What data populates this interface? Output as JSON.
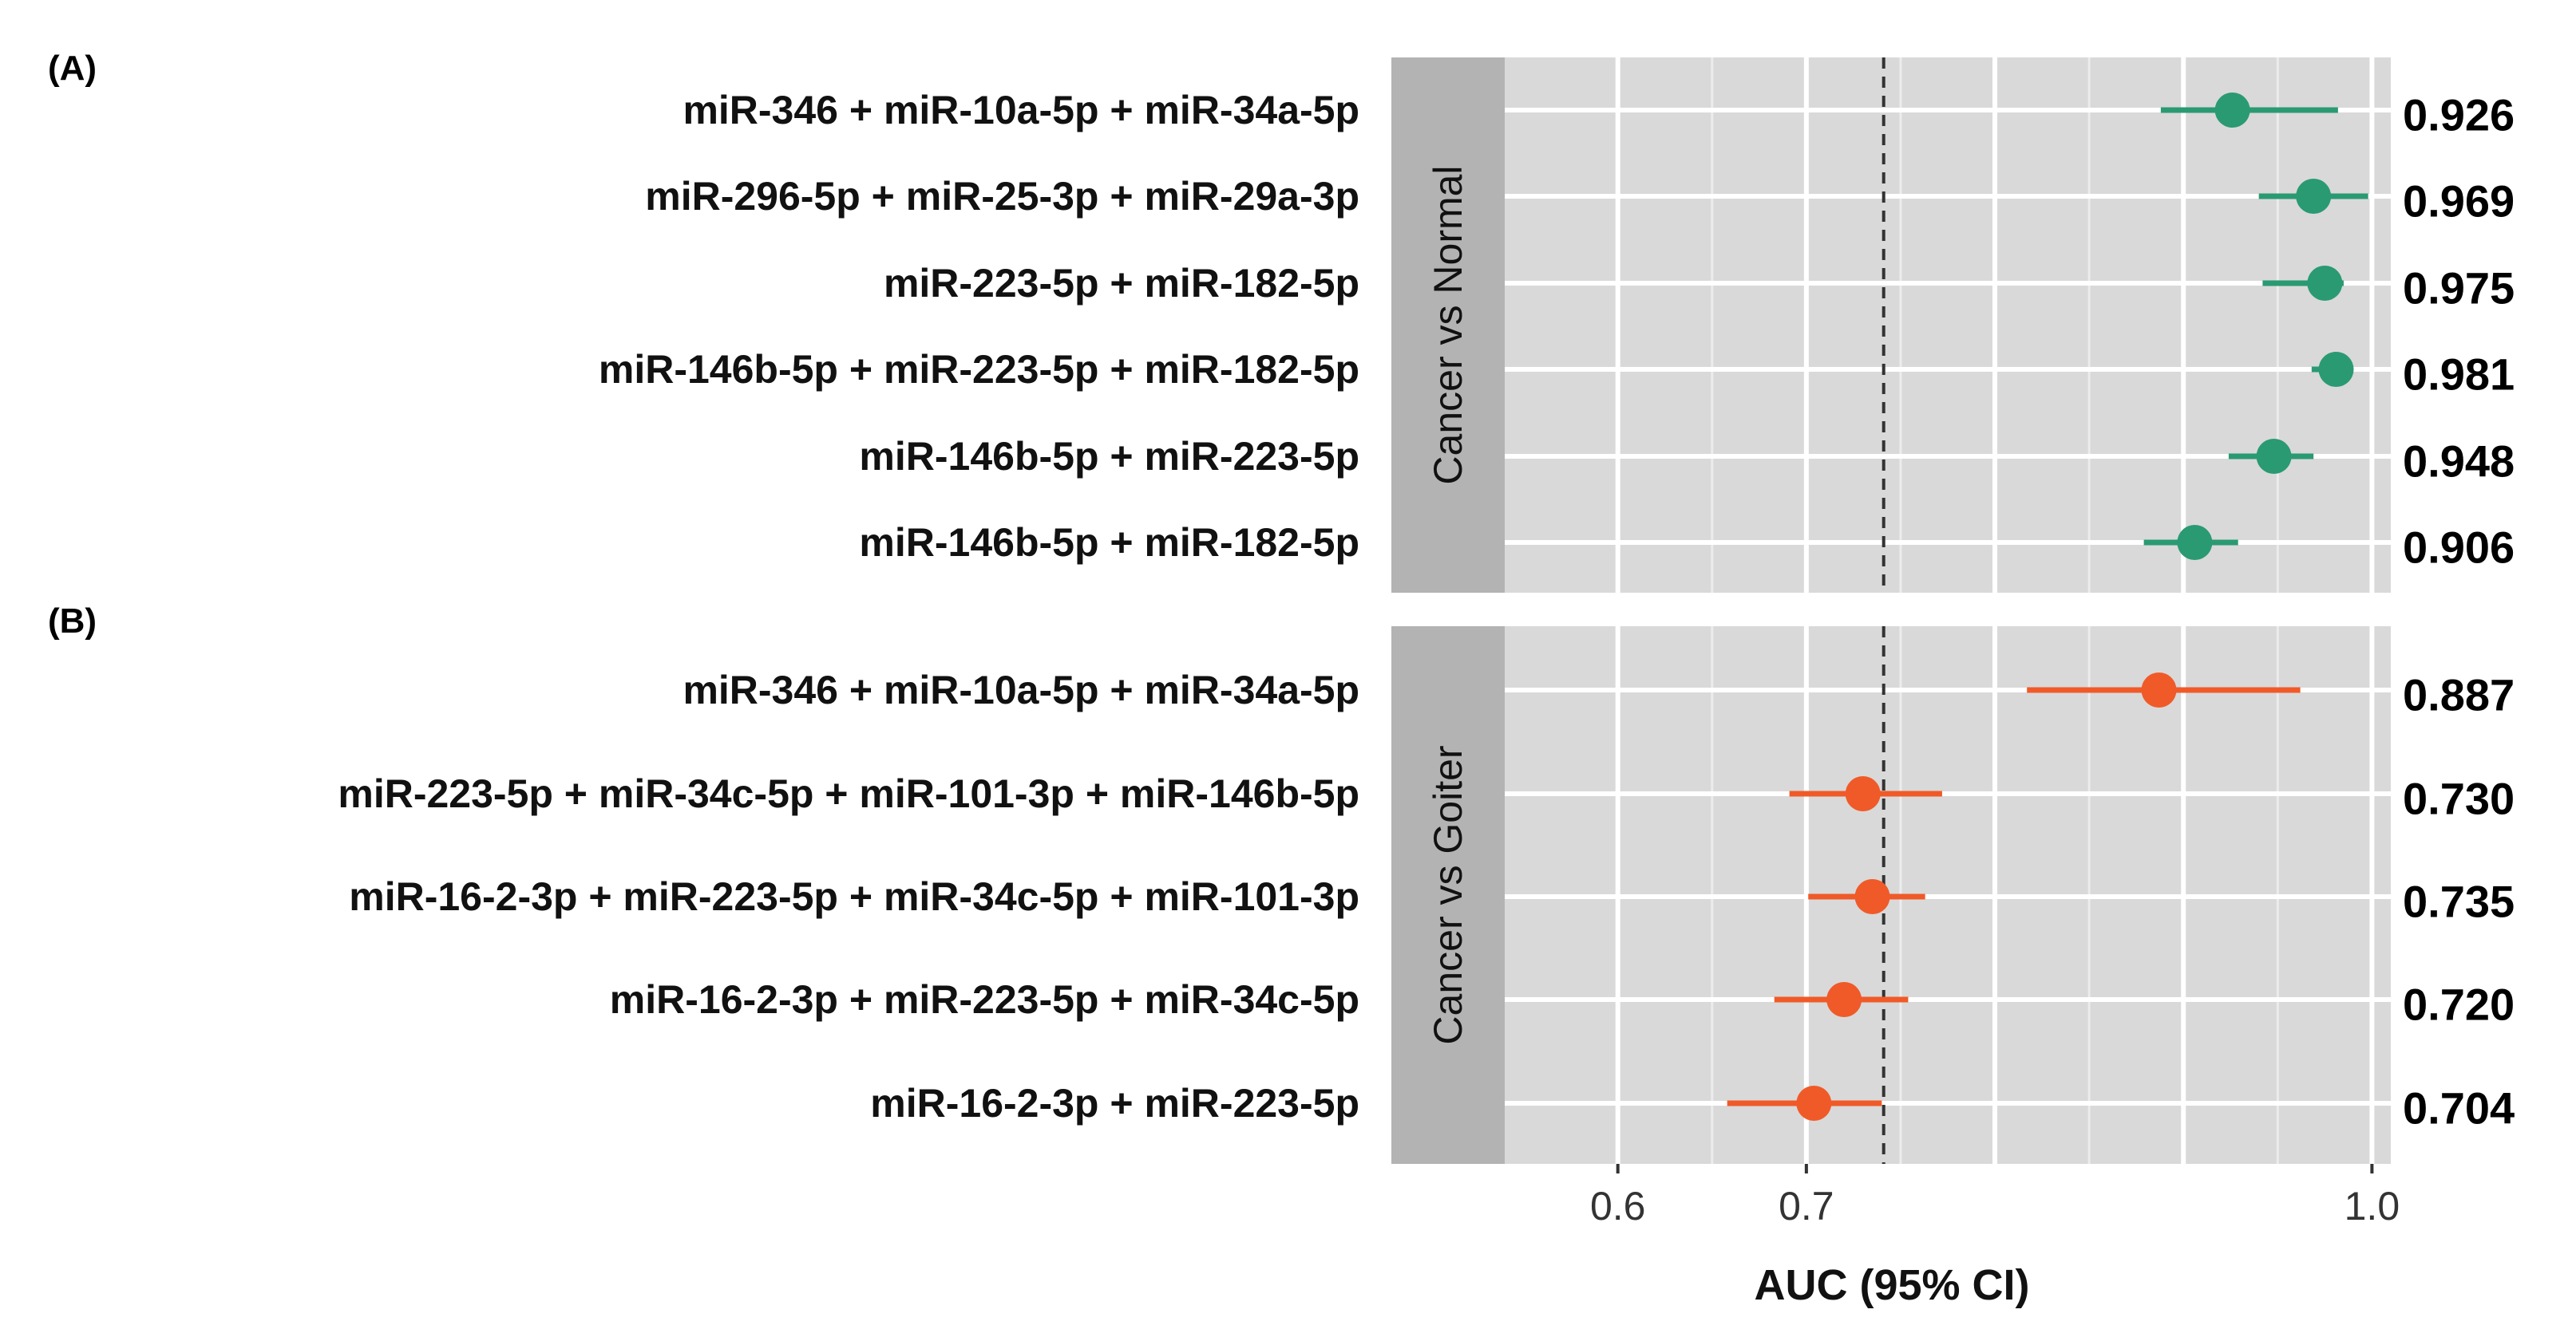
{
  "chart_data": {
    "type": "forest",
    "xlabel": "AUC (95% CI)",
    "xlim": [
      0.54,
      1.01
    ],
    "xticks": [
      0.6,
      0.7,
      1.0
    ],
    "xtick_labels": [
      "0.6",
      "0.7",
      "1.0"
    ],
    "reference_line": 0.741,
    "panels": [
      {
        "letter": "(A)",
        "strip": "Cancer vs Normal",
        "color": "#2a9a72",
        "rows": [
          {
            "label": "miR-346 + miR-10a-5p + miR-34a-5p",
            "auc": 0.926,
            "lo": 0.888,
            "hi": 0.982,
            "value_text": "0.926"
          },
          {
            "label": "miR-296-5p + miR-25-3p + miR-29a-3p",
            "auc": 0.969,
            "lo": 0.94,
            "hi": 0.998,
            "value_text": "0.969"
          },
          {
            "label": "miR-223-5p + miR-182-5p",
            "auc": 0.975,
            "lo": 0.942,
            "hi": 0.985,
            "value_text": "0.975"
          },
          {
            "label": "miR-146b-5p + miR-223-5p + miR-182-5p",
            "auc": 0.981,
            "lo": 0.968,
            "hi": 0.987,
            "value_text": "0.981"
          },
          {
            "label": "miR-146b-5p + miR-223-5p",
            "auc": 0.948,
            "lo": 0.924,
            "hi": 0.969,
            "value_text": "0.948"
          },
          {
            "label": "miR-146b-5p + miR-182-5p",
            "auc": 0.906,
            "lo": 0.879,
            "hi": 0.929,
            "value_text": "0.906"
          }
        ]
      },
      {
        "letter": "(B)",
        "strip": "Cancer vs Goiter",
        "color": "#f05a28",
        "rows": [
          {
            "label": "miR-346 + miR-10a-5p + miR-34a-5p",
            "auc": 0.887,
            "lo": 0.817,
            "hi": 0.962,
            "value_text": "0.887"
          },
          {
            "label": "miR-223-5p + miR-34c-5p + miR-101-3p + miR-146b-5p",
            "auc": 0.73,
            "lo": 0.691,
            "hi": 0.772,
            "value_text": "0.730"
          },
          {
            "label": "miR-16-2-3p + miR-223-5p + miR-34c-5p + miR-101-3p",
            "auc": 0.735,
            "lo": 0.701,
            "hi": 0.763,
            "value_text": "0.735"
          },
          {
            "label": "miR-16-2-3p + miR-223-5p + miR-34c-5p",
            "auc": 0.72,
            "lo": 0.683,
            "hi": 0.754,
            "value_text": "0.720"
          },
          {
            "label": "miR-16-2-3p + miR-223-5p",
            "auc": 0.704,
            "lo": 0.658,
            "hi": 0.74,
            "value_text": "0.704"
          }
        ]
      }
    ]
  }
}
